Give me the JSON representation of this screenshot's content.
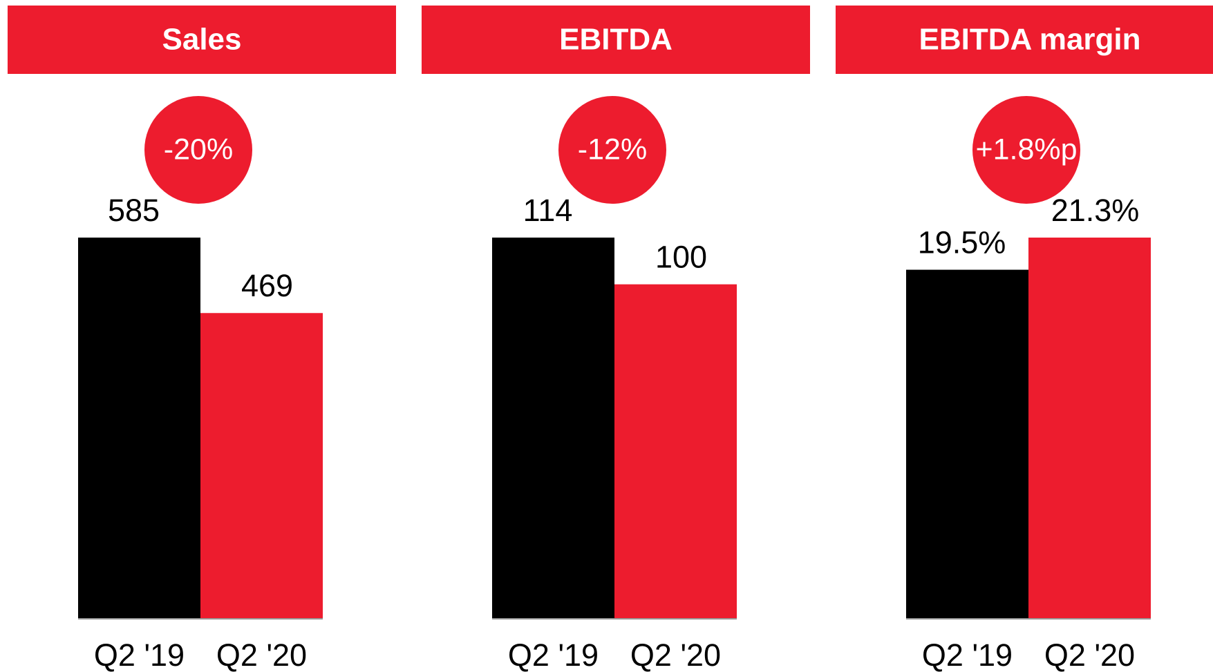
{
  "chart_data": [
    {
      "type": "bar",
      "title": "Sales",
      "annotation": "-20%",
      "categories": [
        "Q2 '19",
        "Q2 '20"
      ],
      "values": [
        585,
        469
      ],
      "colors": [
        "#000000",
        "#ed1c2e"
      ]
    },
    {
      "type": "bar",
      "title": "EBITDA",
      "annotation": "-12%",
      "categories": [
        "Q2 '19",
        "Q2 '20"
      ],
      "values": [
        114,
        100
      ],
      "colors": [
        "#000000",
        "#ed1c2e"
      ]
    },
    {
      "type": "bar",
      "title": "EBITDA margin",
      "annotation": "+1.8%p",
      "categories": [
        "Q2 '19",
        "Q2 '20"
      ],
      "values": [
        19.5,
        21.3
      ],
      "value_labels": [
        "19.5%",
        "21.3%"
      ],
      "colors": [
        "#000000",
        "#ed1c2e"
      ]
    }
  ]
}
